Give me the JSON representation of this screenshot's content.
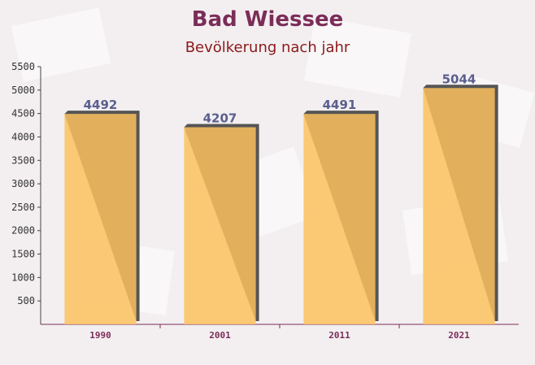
{
  "chart_data": {
    "type": "bar",
    "title": "Bad Wiessee",
    "subtitle": "Bevölkerung nach jahr",
    "categories": [
      "1990",
      "2001",
      "2011",
      "2021"
    ],
    "values": [
      4492,
      4207,
      4491,
      5044
    ],
    "color": "#fbc15e",
    "ylim": [
      0,
      5500
    ],
    "yticks": [
      500,
      1000,
      1500,
      2000,
      2500,
      3000,
      3500,
      4000,
      4500,
      5000,
      5500
    ]
  }
}
